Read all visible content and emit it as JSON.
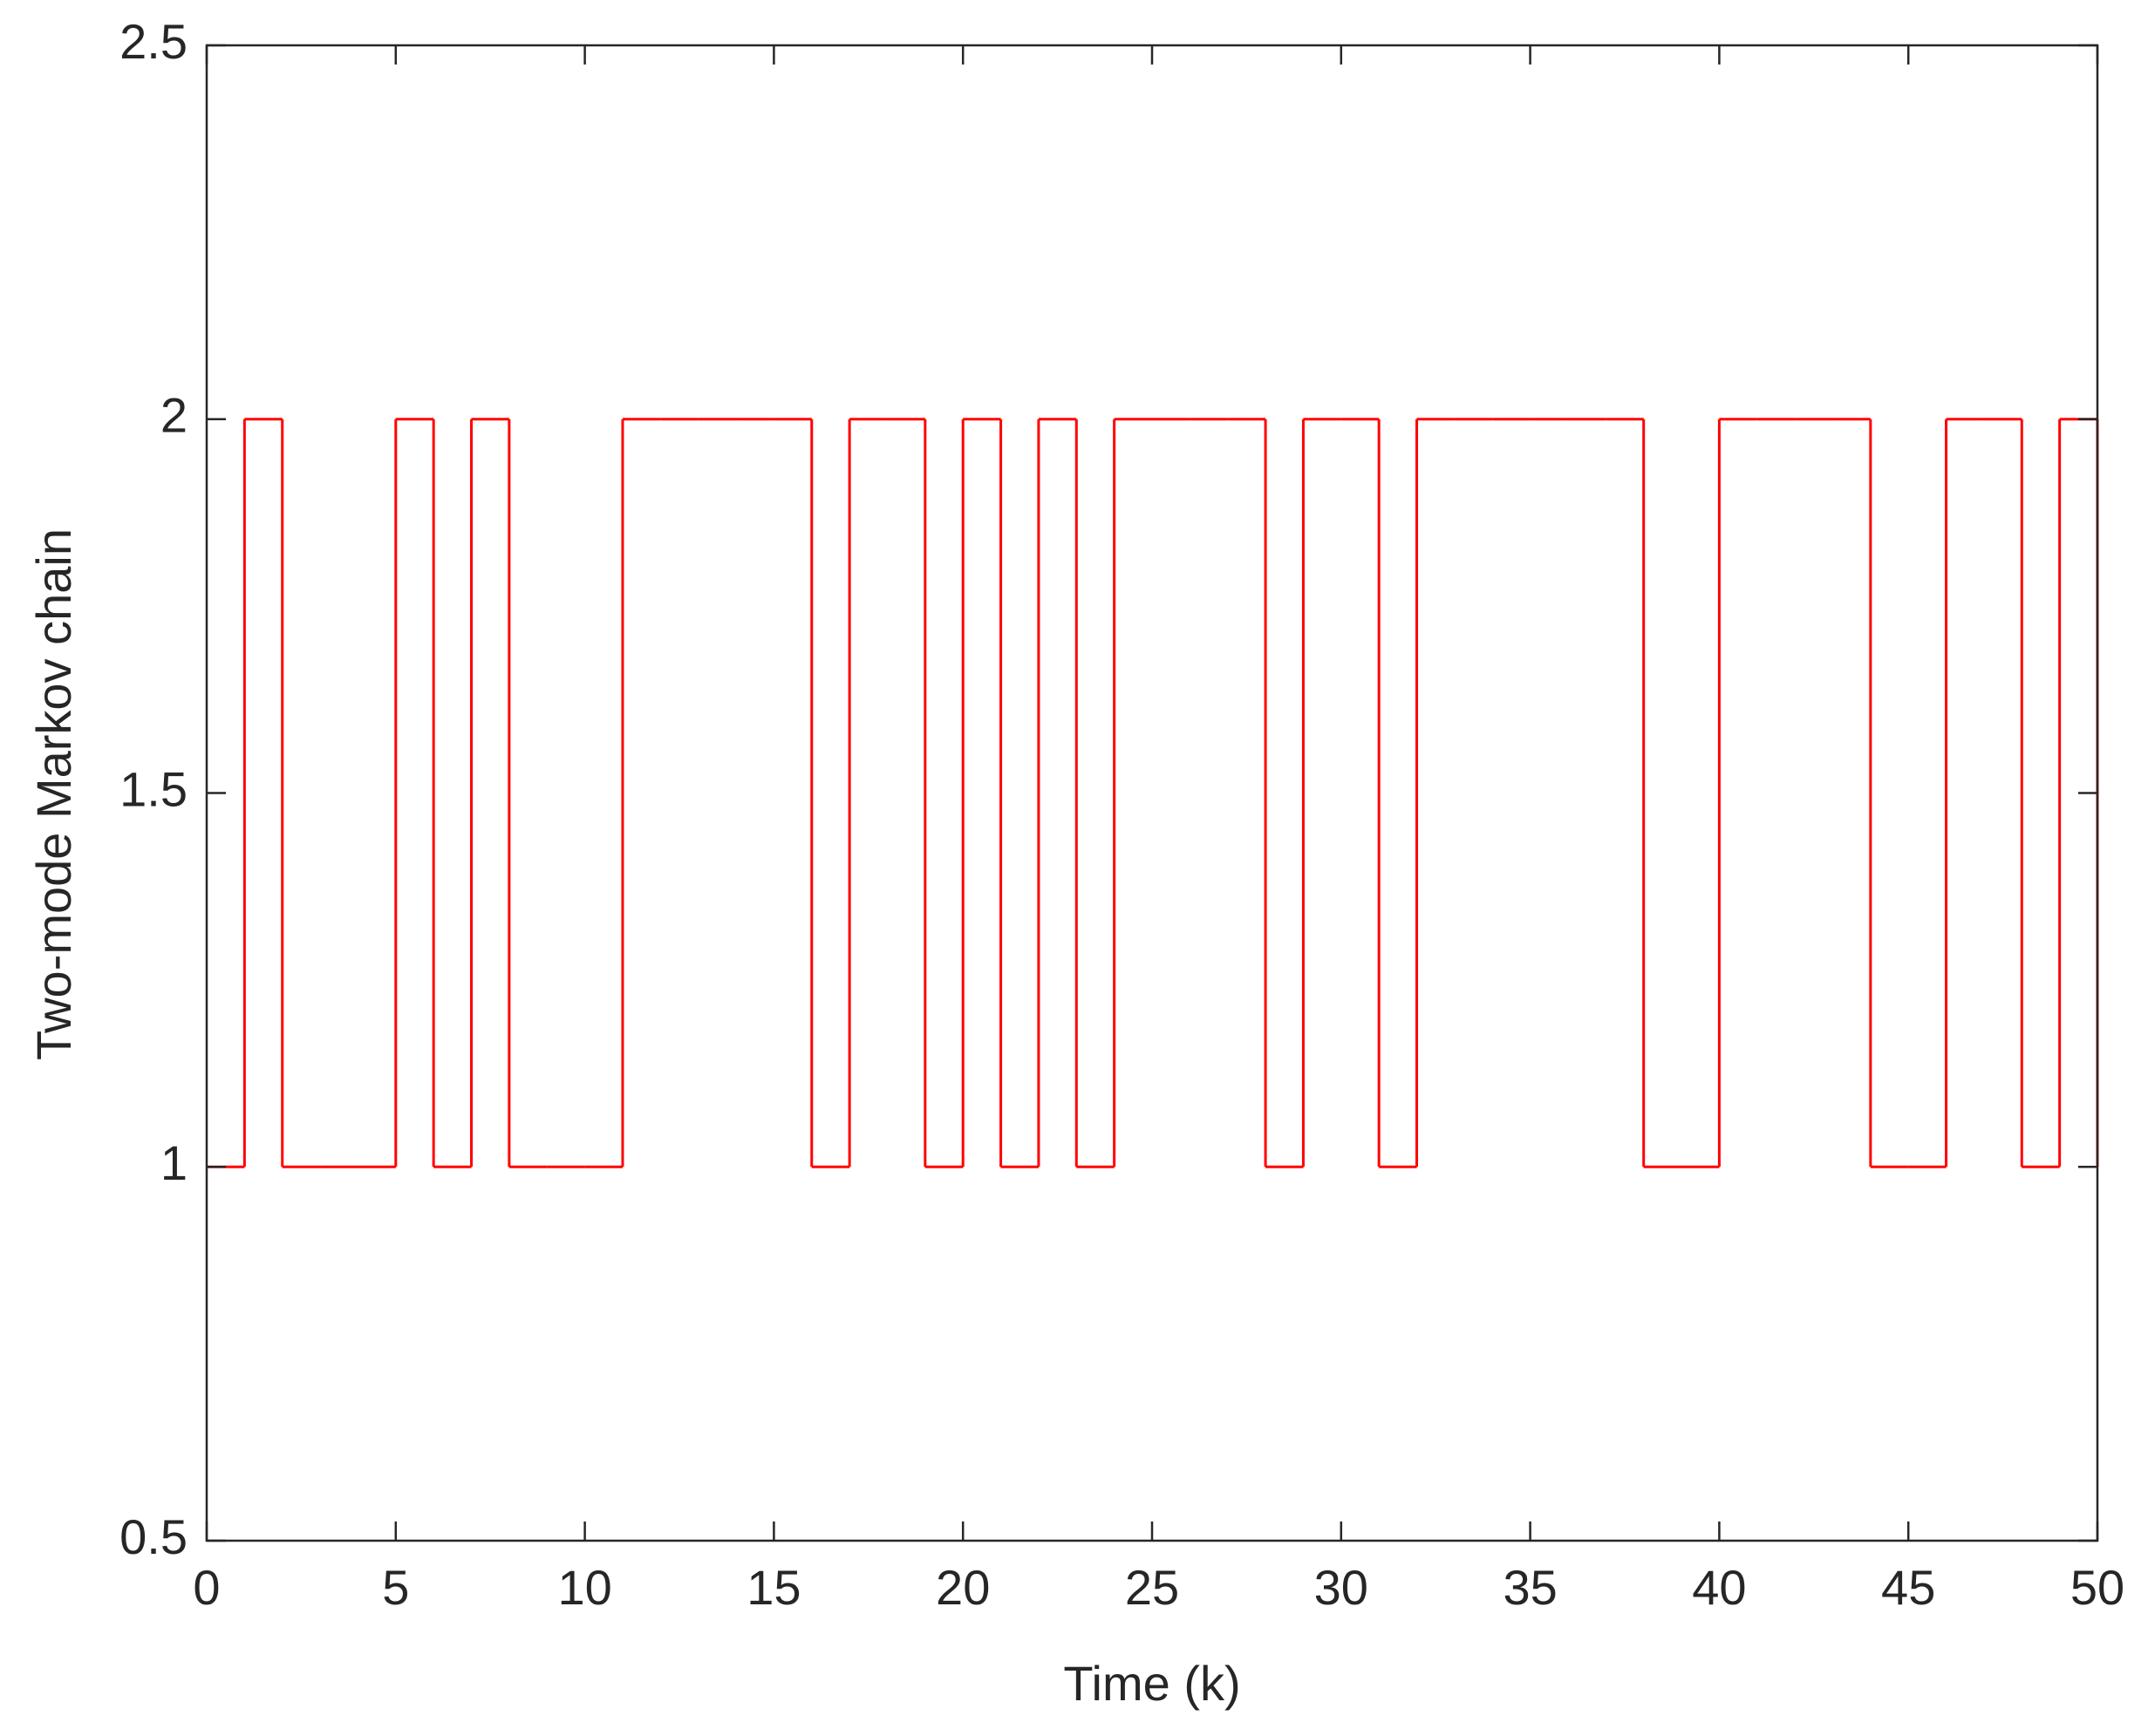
{
  "chart_data": {
    "type": "line",
    "drawstyle": "steps-post",
    "xlabel": "Time (k)",
    "ylabel": "Two-mode Markov chain",
    "x": [
      0,
      1,
      2,
      3,
      4,
      5,
      6,
      7,
      8,
      9,
      10,
      11,
      12,
      13,
      14,
      15,
      16,
      17,
      18,
      19,
      20,
      21,
      22,
      23,
      24,
      25,
      26,
      27,
      28,
      29,
      30,
      31,
      32,
      33,
      34,
      35,
      36,
      37,
      38,
      39,
      40,
      41,
      42,
      43,
      44,
      45,
      46,
      47,
      48,
      49,
      50
    ],
    "series": [
      {
        "color": "#ff0000",
        "values": [
          1,
          2,
          1,
          1,
          1,
          2,
          1,
          2,
          1,
          1,
          1,
          2,
          2,
          2,
          2,
          2,
          1,
          2,
          2,
          1,
          2,
          1,
          2,
          1,
          2,
          2,
          2,
          2,
          1,
          2,
          2,
          1,
          2,
          2,
          2,
          2,
          2,
          2,
          1,
          1,
          2,
          2,
          2,
          2,
          1,
          1,
          2,
          2,
          1,
          2,
          1
        ]
      }
    ],
    "xlim": [
      0,
      50
    ],
    "xticks": [
      0,
      5,
      10,
      15,
      20,
      25,
      30,
      35,
      40,
      45,
      50
    ],
    "ylim": [
      0.5,
      2.5
    ],
    "yticks": [
      0.5,
      1,
      1.5,
      2,
      2.5
    ],
    "grid": false
  }
}
